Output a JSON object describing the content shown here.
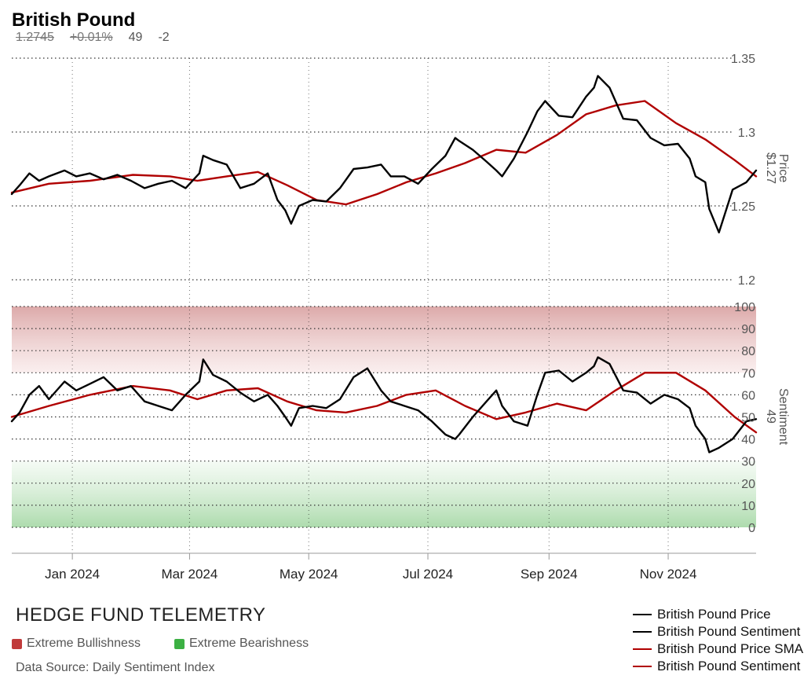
{
  "header": {
    "title": "British Pound",
    "price": "1.2745",
    "change": "+0.01%",
    "sentiment": "49",
    "sentiment_change": "-2"
  },
  "footer": {
    "brand": "HEDGE FUND TELEMETRY",
    "bull_label": "Extreme Bullishness",
    "bull_color": "#c03a3a",
    "bear_label": "Extreme Bearishness",
    "bear_color": "#3cb043",
    "source": "Data Source: Daily Sentiment Index"
  },
  "legend": [
    {
      "label": "British Pound Price",
      "color": "#000000"
    },
    {
      "label": "British Pound Sentiment",
      "color": "#000000"
    },
    {
      "label": "British Pound Price SMA",
      "color": "#b00000"
    },
    {
      "label": "British Pound Sentiment SMA",
      "color": "#b00000"
    }
  ],
  "chart_data": {
    "type": "line",
    "x_ticks": [
      "Jan 2024",
      "Mar 2024",
      "May 2024",
      "Jul 2024",
      "Sep 2024",
      "Nov 2024"
    ],
    "price_panel": {
      "axis_label": "Price",
      "current_label": "$1.27",
      "ylim": [
        1.2,
        1.35
      ],
      "ticks": [
        "1.35",
        "1.3",
        "1.25",
        "1.2"
      ],
      "series": [
        {
          "name": "British Pound Price",
          "color": "#000000",
          "x": [
            "2023-12-01",
            "2023-12-05",
            "2023-12-10",
            "2023-12-15",
            "2023-12-20",
            "2023-12-28",
            "2024-01-03",
            "2024-01-10",
            "2024-01-17",
            "2024-01-24",
            "2024-01-31",
            "2024-02-07",
            "2024-02-14",
            "2024-02-21",
            "2024-02-28",
            "2024-03-06",
            "2024-03-08",
            "2024-03-13",
            "2024-03-20",
            "2024-03-27",
            "2024-04-03",
            "2024-04-10",
            "2024-04-15",
            "2024-04-19",
            "2024-04-22",
            "2024-04-26",
            "2024-05-03",
            "2024-05-10",
            "2024-05-17",
            "2024-05-24",
            "2024-05-31",
            "2024-06-07",
            "2024-06-12",
            "2024-06-19",
            "2024-06-26",
            "2024-07-03",
            "2024-07-10",
            "2024-07-15",
            "2024-07-17",
            "2024-07-24",
            "2024-07-31",
            "2024-08-05",
            "2024-08-08",
            "2024-08-14",
            "2024-08-21",
            "2024-08-26",
            "2024-08-30",
            "2024-09-06",
            "2024-09-13",
            "2024-09-20",
            "2024-09-24",
            "2024-09-26",
            "2024-10-02",
            "2024-10-09",
            "2024-10-16",
            "2024-10-23",
            "2024-10-30",
            "2024-11-06",
            "2024-11-12",
            "2024-11-15",
            "2024-11-20",
            "2024-11-22",
            "2024-11-27",
            "2024-12-04",
            "2024-12-11",
            "2024-12-16"
          ],
          "values": [
            1.258,
            1.264,
            1.272,
            1.267,
            1.27,
            1.274,
            1.27,
            1.272,
            1.268,
            1.271,
            1.267,
            1.262,
            1.265,
            1.267,
            1.262,
            1.272,
            1.284,
            1.281,
            1.278,
            1.262,
            1.265,
            1.272,
            1.254,
            1.247,
            1.238,
            1.25,
            1.254,
            1.253,
            1.262,
            1.275,
            1.276,
            1.278,
            1.27,
            1.27,
            1.265,
            1.275,
            1.284,
            1.296,
            1.294,
            1.288,
            1.28,
            1.274,
            1.27,
            1.282,
            1.3,
            1.314,
            1.321,
            1.311,
            1.31,
            1.324,
            1.33,
            1.338,
            1.33,
            1.309,
            1.308,
            1.296,
            1.291,
            1.292,
            1.282,
            1.27,
            1.266,
            1.248,
            1.232,
            1.261,
            1.266,
            1.274
          ]
        },
        {
          "name": "British Pound Price SMA",
          "color": "#b00000",
          "x": [
            "2023-12-01",
            "2023-12-20",
            "2024-01-10",
            "2024-02-01",
            "2024-02-20",
            "2024-03-05",
            "2024-03-20",
            "2024-04-05",
            "2024-04-20",
            "2024-05-05",
            "2024-05-20",
            "2024-06-05",
            "2024-06-20",
            "2024-07-05",
            "2024-07-20",
            "2024-08-05",
            "2024-08-20",
            "2024-09-05",
            "2024-09-20",
            "2024-10-05",
            "2024-10-20",
            "2024-11-05",
            "2024-11-20",
            "2024-12-05",
            "2024-12-16"
          ],
          "values": [
            1.259,
            1.265,
            1.267,
            1.271,
            1.27,
            1.267,
            1.27,
            1.273,
            1.264,
            1.254,
            1.251,
            1.258,
            1.266,
            1.272,
            1.279,
            1.288,
            1.286,
            1.298,
            1.312,
            1.318,
            1.321,
            1.306,
            1.295,
            1.281,
            1.27
          ]
        }
      ]
    },
    "sentiment_panel": {
      "axis_label": "Sentiment",
      "current_label": "49",
      "ylim": [
        0,
        100
      ],
      "ticks": [
        "100",
        "90",
        "80",
        "70",
        "60",
        "50",
        "40",
        "30",
        "20",
        "10",
        "0"
      ],
      "extreme_bullish_zone": [
        70,
        100
      ],
      "extreme_bearish_zone": [
        0,
        30
      ],
      "series": [
        {
          "name": "British Pound Sentiment",
          "color": "#000000",
          "x": [
            "2023-12-01",
            "2023-12-05",
            "2023-12-10",
            "2023-12-15",
            "2023-12-20",
            "2023-12-28",
            "2024-01-03",
            "2024-01-10",
            "2024-01-17",
            "2024-01-24",
            "2024-01-31",
            "2024-02-07",
            "2024-02-14",
            "2024-02-21",
            "2024-02-28",
            "2024-03-06",
            "2024-03-08",
            "2024-03-13",
            "2024-03-20",
            "2024-03-27",
            "2024-04-03",
            "2024-04-10",
            "2024-04-15",
            "2024-04-19",
            "2024-04-22",
            "2024-04-26",
            "2024-05-03",
            "2024-05-10",
            "2024-05-17",
            "2024-05-24",
            "2024-05-31",
            "2024-06-07",
            "2024-06-12",
            "2024-06-19",
            "2024-06-26",
            "2024-07-03",
            "2024-07-10",
            "2024-07-15",
            "2024-07-17",
            "2024-07-24",
            "2024-07-31",
            "2024-08-05",
            "2024-08-08",
            "2024-08-14",
            "2024-08-21",
            "2024-08-26",
            "2024-08-30",
            "2024-09-06",
            "2024-09-13",
            "2024-09-20",
            "2024-09-24",
            "2024-09-26",
            "2024-10-02",
            "2024-10-09",
            "2024-10-16",
            "2024-10-23",
            "2024-10-30",
            "2024-11-06",
            "2024-11-12",
            "2024-11-15",
            "2024-11-20",
            "2024-11-22",
            "2024-11-27",
            "2024-12-04",
            "2024-12-11",
            "2024-12-16"
          ],
          "values": [
            48,
            52,
            60,
            64,
            58,
            66,
            62,
            65,
            68,
            62,
            64,
            57,
            55,
            53,
            60,
            66,
            76,
            69,
            66,
            61,
            57,
            60,
            55,
            50,
            46,
            54,
            55,
            54,
            58,
            68,
            72,
            62,
            57,
            55,
            53,
            48,
            42,
            40,
            42,
            50,
            57,
            62,
            55,
            48,
            46,
            60,
            70,
            71,
            66,
            70,
            73,
            77,
            74,
            62,
            61,
            56,
            60,
            58,
            54,
            46,
            40,
            34,
            36,
            40,
            48,
            49
          ]
        },
        {
          "name": "British Pound Sentiment SMA",
          "color": "#b00000",
          "x": [
            "2023-12-01",
            "2023-12-20",
            "2024-01-10",
            "2024-02-01",
            "2024-02-20",
            "2024-03-05",
            "2024-03-20",
            "2024-04-05",
            "2024-04-20",
            "2024-05-05",
            "2024-05-20",
            "2024-06-05",
            "2024-06-20",
            "2024-07-05",
            "2024-07-20",
            "2024-08-05",
            "2024-08-20",
            "2024-09-05",
            "2024-09-20",
            "2024-10-05",
            "2024-10-20",
            "2024-11-05",
            "2024-11-20",
            "2024-12-05",
            "2024-12-16"
          ],
          "values": [
            50,
            55,
            60,
            64,
            62,
            58,
            62,
            63,
            57,
            53,
            52,
            55,
            60,
            62,
            55,
            49,
            52,
            56,
            53,
            62,
            70,
            70,
            62,
            50,
            43
          ]
        }
      ]
    }
  }
}
